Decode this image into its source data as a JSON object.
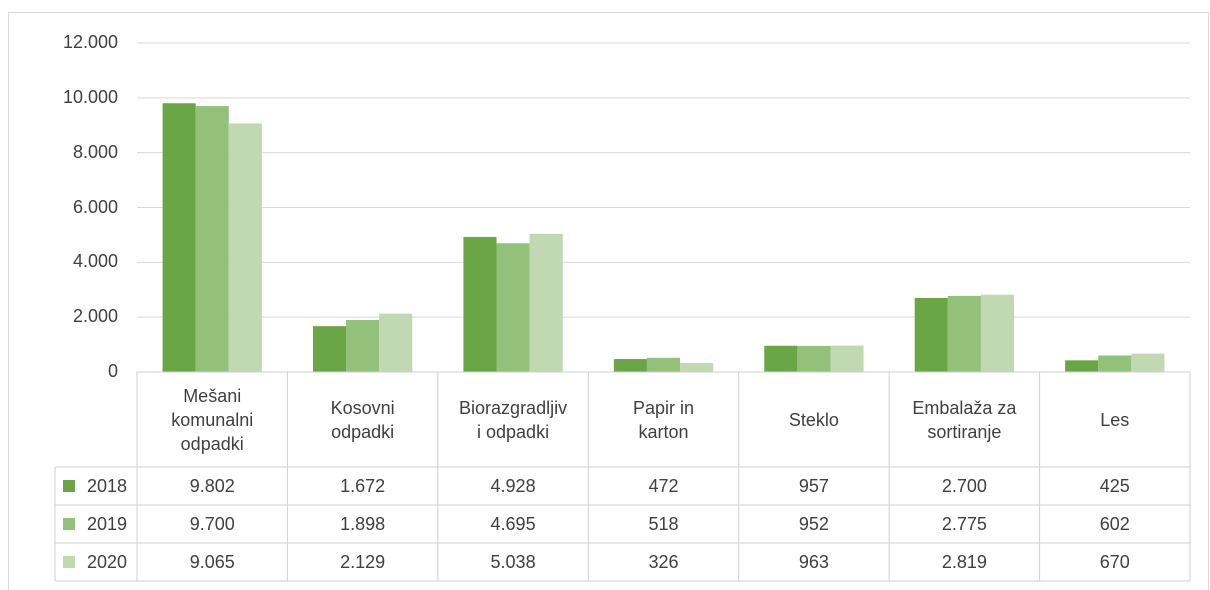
{
  "chart_data": {
    "type": "bar",
    "categories": [
      "Mešani\nkomunalni\nodpadki",
      "Kosovni\nodpadki",
      "Biorazgradljiv\ni odpadki",
      "Papir in\nkarton",
      "Steklo",
      "Embalaža za\nsortiranje",
      "Les"
    ],
    "series": [
      {
        "name": "2018",
        "color": "#6aa646",
        "values": [
          9802,
          1672,
          4928,
          472,
          957,
          2700,
          425
        ],
        "value_labels": [
          "9.802",
          "1.672",
          "4.928",
          "472",
          "957",
          "2.700",
          "425"
        ]
      },
      {
        "name": "2019",
        "color": "#93c07a",
        "values": [
          9700,
          1898,
          4695,
          518,
          952,
          2775,
          602
        ],
        "value_labels": [
          "9.700",
          "1.898",
          "4.695",
          "518",
          "952",
          "2.775",
          "602"
        ]
      },
      {
        "name": "2020",
        "color": "#c0d9b2",
        "values": [
          9065,
          2129,
          5038,
          326,
          963,
          2819,
          670
        ],
        "value_labels": [
          "9.065",
          "2.129",
          "5.038",
          "326",
          "963",
          "2.819",
          "670"
        ]
      }
    ],
    "ylim": [
      0,
      12000
    ],
    "yticks": [
      0,
      {
        "value": 2000,
        "label": "2.000"
      },
      {
        "value": 4000,
        "label": "4.000"
      },
      {
        "value": 6000,
        "label": "6.000"
      },
      {
        "value": 8000,
        "label": "8.000"
      },
      {
        "value": 10000,
        "label": "10.000"
      },
      {
        "value": 12000,
        "label": "12.000"
      }
    ],
    "grid": true
  }
}
